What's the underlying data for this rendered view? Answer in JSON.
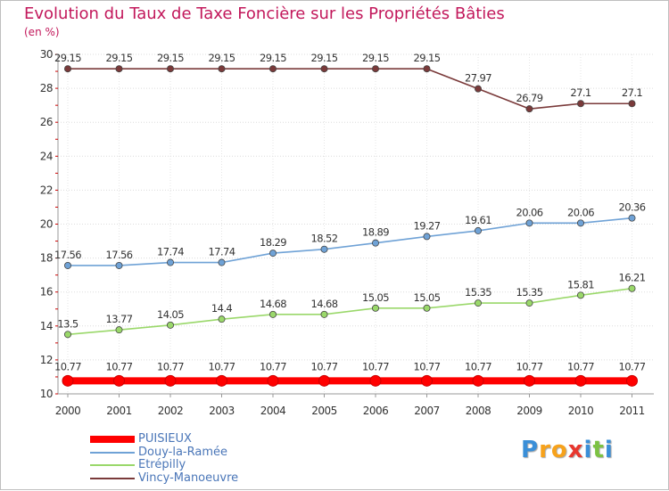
{
  "title": "Evolution du Taux de Taxe Foncière sur les Propriétés Bâties",
  "subtitle": "(en %)",
  "logo": {
    "letters": [
      "P",
      "r",
      "o",
      "x",
      "i",
      "t",
      "i"
    ],
    "colors": [
      "#3a8fd8",
      "#f7a21b",
      "#f7a21b",
      "#e8372e",
      "#3a8fd8",
      "#7cc242",
      "#3a8fd8"
    ]
  },
  "chart_data": {
    "type": "line",
    "title": "Evolution du Taux de Taxe Foncière sur les Propriétés Bâties",
    "ylabel": "(en %)",
    "xlabel": "",
    "x": [
      "2000",
      "2001",
      "2002",
      "2003",
      "2004",
      "2005",
      "2006",
      "2007",
      "2008",
      "2009",
      "2010",
      "2011"
    ],
    "ylim": [
      10,
      30
    ],
    "yticks": [
      "10",
      "12",
      "14",
      "16",
      "18",
      "20",
      "22",
      "24",
      "26",
      "28",
      "30"
    ],
    "series": [
      {
        "name": "PUISIEUX",
        "color": "#ff0000",
        "values": [
          10.77,
          10.77,
          10.77,
          10.77,
          10.77,
          10.77,
          10.77,
          10.77,
          10.77,
          10.77,
          10.77,
          10.77
        ],
        "labels": [
          "10.77",
          "10.77",
          "10.77",
          "10.77",
          "10.77",
          "10.77",
          "10.77",
          "10.77",
          "10.77",
          "10.77",
          "10.77",
          "10.77"
        ]
      },
      {
        "name": "Douy-la-Ramée",
        "color": "#6fa2d6",
        "values": [
          17.56,
          17.56,
          17.74,
          17.74,
          18.29,
          18.52,
          18.89,
          19.27,
          19.61,
          20.06,
          20.06,
          20.36
        ],
        "labels": [
          "17.56",
          "17.56",
          "17.74",
          "17.74",
          "18.29",
          "18.52",
          "18.89",
          "19.27",
          "19.61",
          "20.06",
          "20.06",
          "20.36"
        ]
      },
      {
        "name": "Etrépilly",
        "color": "#9ad86a",
        "values": [
          13.5,
          13.77,
          14.05,
          14.4,
          14.68,
          14.68,
          15.05,
          15.05,
          15.35,
          15.35,
          15.81,
          16.21
        ],
        "labels": [
          "13.5",
          "13.77",
          "14.05",
          "14.4",
          "14.68",
          "14.68",
          "15.05",
          "15.05",
          "15.35",
          "15.35",
          "15.81",
          "16.21"
        ]
      },
      {
        "name": "Vincy-Manoeuvre",
        "color": "#7a3a3a",
        "values": [
          29.15,
          29.15,
          29.15,
          29.15,
          29.15,
          29.15,
          29.15,
          29.15,
          27.97,
          26.79,
          27.1,
          27.1
        ],
        "labels": [
          "29.15",
          "29.15",
          "29.15",
          "29.15",
          "29.15",
          "29.15",
          "29.15",
          "29.15",
          "27.97",
          "26.79",
          "27.1",
          "27.1"
        ]
      }
    ],
    "legend": "bottom-left"
  }
}
